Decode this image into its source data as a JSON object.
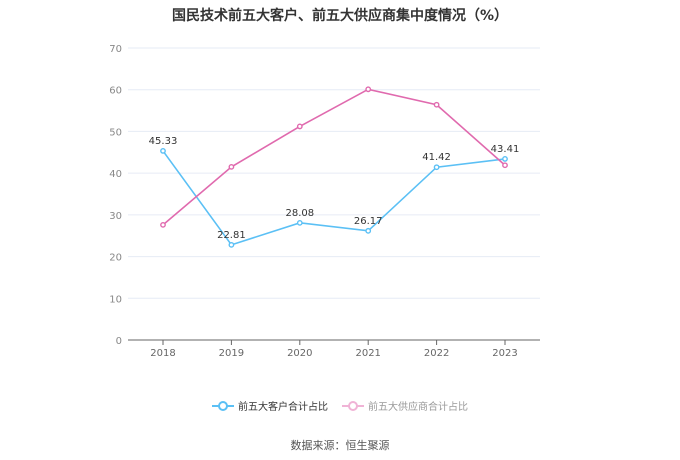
{
  "chart_data": {
    "type": "line",
    "title": "国民技术前五大客户、前五大供应商集中度情况（%）",
    "categories": [
      "2018",
      "2019",
      "2020",
      "2021",
      "2022",
      "2023"
    ],
    "ylim": [
      0,
      70
    ],
    "yticks": [
      0,
      10,
      20,
      30,
      40,
      50,
      60,
      70
    ],
    "grid": true,
    "legend_position": "bottom",
    "series": [
      {
        "name": "前五大客户合计占比",
        "values": [
          45.33,
          22.81,
          28.08,
          26.17,
          41.42,
          43.41
        ],
        "color": "#5bc0f5",
        "labels": true
      },
      {
        "name": "前五大供应商合计占比",
        "values": [
          27.6,
          41.5,
          51.2,
          60.1,
          56.4,
          41.9
        ],
        "color": "#e06aae",
        "labels": false
      }
    ]
  },
  "source": "数据来源：恒生聚源"
}
